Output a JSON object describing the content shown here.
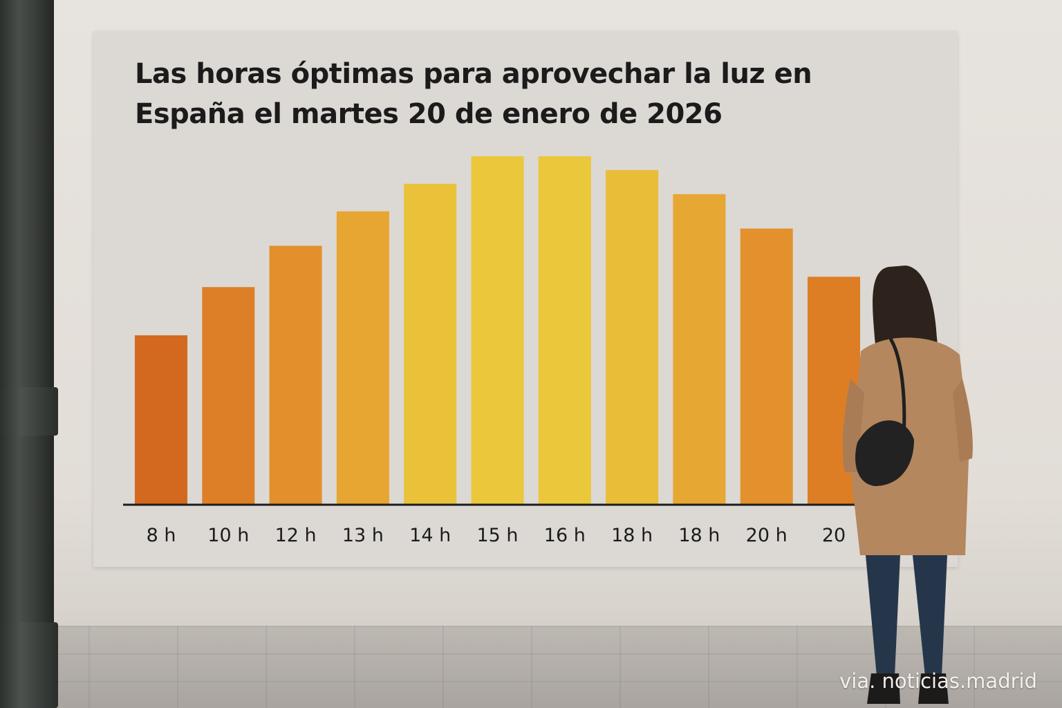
{
  "chart_data": {
    "type": "bar",
    "title": "Las horas óptimas para aprovechar la luz en España el martes 20 de enero de 2026",
    "categories": [
      "8 h",
      "10 h",
      "12 h",
      "13 h",
      "14 h",
      "15 h",
      "16 h",
      "18 h",
      "18 h",
      "20 h",
      "20"
    ],
    "values": [
      49,
      63,
      75,
      85,
      93,
      101,
      101,
      97,
      90,
      80,
      66
    ],
    "ylim": [
      0,
      101
    ],
    "grid": false,
    "colors": [
      "#d2691e",
      "#dc7f26",
      "#e2902b",
      "#e7a531",
      "#e9c23a",
      "#ebc73b",
      "#ebc73b",
      "#e9bd38",
      "#e6a733",
      "#e2912c",
      "#dd7e24"
    ]
  },
  "credit": "via. noticias.madrid"
}
